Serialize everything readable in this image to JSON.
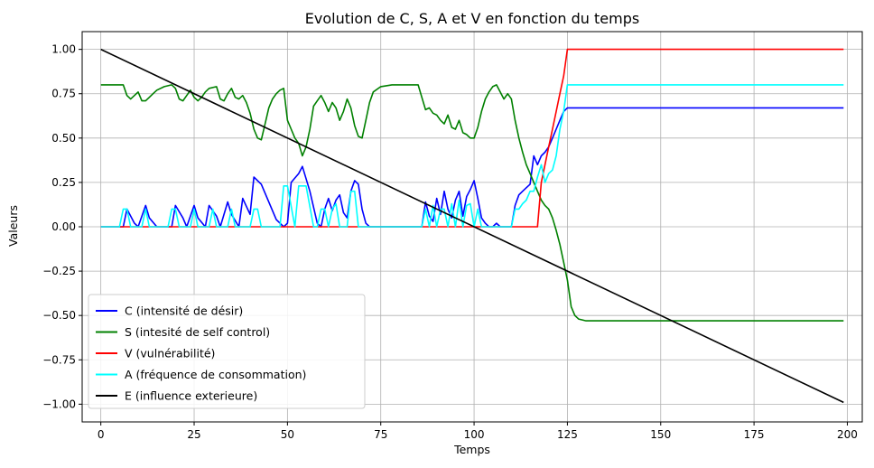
{
  "chart_data": {
    "type": "line",
    "title": "Evolution de C, S, A et V en fonction du temps",
    "xlabel": "Temps",
    "ylabel": "Valeurs",
    "xlim": [
      -5,
      204
    ],
    "ylim": [
      -1.1,
      1.1
    ],
    "xticks": [
      0,
      25,
      50,
      75,
      100,
      125,
      150,
      175,
      200
    ],
    "yticks": [
      1.0,
      0.75,
      0.5,
      0.25,
      0.0,
      -0.25,
      -0.5,
      -0.75,
      -1.0
    ],
    "xtick_labels": [
      "0",
      "25",
      "50",
      "75",
      "100",
      "125",
      "150",
      "175",
      "200"
    ],
    "ytick_labels": [
      "1.00",
      "0.75",
      "0.50",
      "0.25",
      "0.00",
      "−0.25",
      "−0.50",
      "−0.75",
      "−1.00"
    ],
    "grid": true,
    "legend_position": "lower-left",
    "series": [
      {
        "name": "C (intensité de désir)",
        "color": "#0000ff",
        "x": [
          0,
          6,
          7,
          9,
          10,
          12,
          13,
          15,
          19,
          20,
          22,
          23,
          25,
          26,
          28,
          29,
          31,
          32,
          34,
          35,
          37,
          38,
          40,
          41,
          43,
          47,
          49,
          50,
          51,
          53,
          54,
          56,
          58,
          59,
          60,
          61,
          62,
          63,
          64,
          65,
          66,
          67,
          68,
          69,
          70,
          71,
          72,
          73,
          77,
          86,
          87,
          88,
          89,
          90,
          91,
          92,
          93,
          94,
          95,
          96,
          97,
          98,
          99,
          100,
          101,
          102,
          103,
          104,
          105,
          106,
          107,
          108,
          110,
          111,
          112,
          113,
          114,
          115,
          116,
          117,
          118,
          119,
          120,
          121,
          122,
          123,
          124,
          125,
          126,
          199
        ],
        "y": [
          0,
          0,
          0.1,
          0.02,
          0,
          0.12,
          0.05,
          0,
          0,
          0.12,
          0.05,
          0,
          0.12,
          0.05,
          0,
          0.12,
          0.06,
          0,
          0.14,
          0.07,
          0,
          0.16,
          0.07,
          0.28,
          0.24,
          0.04,
          0,
          0.02,
          0.25,
          0.3,
          0.34,
          0.2,
          0.02,
          0,
          0.1,
          0.16,
          0.09,
          0.15,
          0.18,
          0.08,
          0.05,
          0.2,
          0.26,
          0.24,
          0.1,
          0.02,
          0,
          0,
          0,
          0,
          0.14,
          0.06,
          0.03,
          0.16,
          0.07,
          0.2,
          0.1,
          0.05,
          0.15,
          0.2,
          0.06,
          0.17,
          0.21,
          0.26,
          0.16,
          0.05,
          0.02,
          0,
          0,
          0.02,
          0,
          0,
          0,
          0.12,
          0.18,
          0.2,
          0.22,
          0.24,
          0.4,
          0.35,
          0.4,
          0.42,
          0.45,
          0.5,
          0.55,
          0.6,
          0.65,
          0.67,
          0.67,
          0.67
        ]
      },
      {
        "name": "S (intesité de self control)",
        "color": "#008000",
        "x": [
          0,
          6,
          7,
          8,
          9,
          10,
          11,
          12,
          13,
          14,
          15,
          17,
          19,
          20,
          21,
          22,
          23,
          24,
          25,
          26,
          27,
          28,
          29,
          31,
          32,
          33,
          34,
          35,
          36,
          37,
          38,
          39,
          40,
          41,
          42,
          43,
          44,
          45,
          46,
          47,
          48,
          49,
          50,
          51,
          52,
          53,
          54,
          55,
          56,
          57,
          58,
          59,
          60,
          61,
          62,
          63,
          64,
          65,
          66,
          67,
          68,
          69,
          70,
          71,
          72,
          73,
          75,
          78,
          80,
          82,
          85,
          86,
          87,
          88,
          89,
          90,
          91,
          92,
          93,
          94,
          95,
          96,
          97,
          98,
          99,
          100,
          101,
          102,
          103,
          104,
          105,
          106,
          107,
          108,
          109,
          110,
          111,
          112,
          113,
          114,
          115,
          116,
          117,
          118,
          119,
          120,
          121,
          122,
          123,
          124,
          125,
          126,
          127,
          128,
          130,
          135,
          199
        ],
        "y": [
          0.8,
          0.8,
          0.74,
          0.72,
          0.74,
          0.76,
          0.71,
          0.71,
          0.73,
          0.75,
          0.77,
          0.79,
          0.8,
          0.78,
          0.72,
          0.71,
          0.74,
          0.77,
          0.73,
          0.71,
          0.73,
          0.76,
          0.78,
          0.79,
          0.72,
          0.71,
          0.75,
          0.78,
          0.73,
          0.72,
          0.74,
          0.7,
          0.64,
          0.55,
          0.5,
          0.49,
          0.58,
          0.67,
          0.72,
          0.75,
          0.77,
          0.78,
          0.6,
          0.55,
          0.5,
          0.47,
          0.4,
          0.45,
          0.55,
          0.68,
          0.71,
          0.74,
          0.7,
          0.65,
          0.7,
          0.67,
          0.6,
          0.65,
          0.72,
          0.67,
          0.57,
          0.51,
          0.5,
          0.6,
          0.7,
          0.76,
          0.79,
          0.8,
          0.8,
          0.8,
          0.8,
          0.73,
          0.66,
          0.67,
          0.64,
          0.63,
          0.6,
          0.58,
          0.63,
          0.56,
          0.55,
          0.6,
          0.53,
          0.52,
          0.5,
          0.5,
          0.56,
          0.65,
          0.72,
          0.76,
          0.79,
          0.8,
          0.76,
          0.72,
          0.75,
          0.72,
          0.6,
          0.5,
          0.42,
          0.35,
          0.3,
          0.25,
          0.2,
          0.15,
          0.12,
          0.1,
          0.05,
          -0.02,
          -0.1,
          -0.2,
          -0.3,
          -0.45,
          -0.5,
          -0.52,
          -0.53,
          -0.53,
          -0.53
        ]
      },
      {
        "name": "V (vulnérabilité)",
        "color": "#ff0000",
        "x": [
          0,
          117,
          118,
          119,
          120,
          121,
          122,
          123,
          124,
          125,
          199
        ],
        "y": [
          0,
          0,
          0.25,
          0.35,
          0.45,
          0.55,
          0.65,
          0.75,
          0.85,
          1.0,
          1.0
        ]
      },
      {
        "name": "A (fréquence de consommation)",
        "color": "#00ffff",
        "x": [
          0,
          5,
          6,
          7,
          8,
          11,
          12,
          13,
          18,
          19,
          20,
          21,
          24,
          25,
          26,
          29,
          30,
          31,
          34,
          35,
          36,
          40,
          41,
          42,
          43,
          48,
          49,
          50,
          52,
          53,
          54,
          55,
          57,
          58,
          59,
          60,
          61,
          62,
          63,
          64,
          66,
          67,
          68,
          69,
          70,
          86,
          87,
          88,
          89,
          90,
          91,
          92,
          93,
          94,
          95,
          96,
          97,
          98,
          99,
          100,
          101,
          102,
          103,
          104,
          105,
          106,
          107,
          110,
          111,
          112,
          113,
          114,
          115,
          116,
          117,
          118,
          119,
          120,
          121,
          122,
          123,
          124,
          125,
          126,
          199
        ],
        "y": [
          0,
          0,
          0.1,
          0.1,
          0,
          0,
          0.1,
          0,
          0,
          0.1,
          0.1,
          0,
          0,
          0.1,
          0,
          0,
          0.1,
          0,
          0,
          0.1,
          0,
          0,
          0.1,
          0.1,
          0,
          0,
          0.23,
          0.23,
          0,
          0.23,
          0.23,
          0.23,
          0,
          0,
          0.1,
          0.1,
          0,
          0.1,
          0.13,
          0,
          0,
          0.2,
          0.2,
          0,
          0,
          0,
          0.1,
          0,
          0.12,
          0,
          0.1,
          0.1,
          0,
          0.13,
          0,
          0.15,
          0,
          0.12,
          0.13,
          0,
          0.1,
          0,
          0,
          0,
          0,
          0,
          0,
          0,
          0.1,
          0.1,
          0.13,
          0.15,
          0.2,
          0.2,
          0.28,
          0.35,
          0.25,
          0.3,
          0.32,
          0.4,
          0.55,
          0.65,
          0.8,
          0.8,
          0.8
        ]
      },
      {
        "name": "E (influence exterieure)",
        "color": "#000000",
        "x": [
          0,
          199
        ],
        "y": [
          1.0,
          -0.99
        ]
      }
    ]
  }
}
